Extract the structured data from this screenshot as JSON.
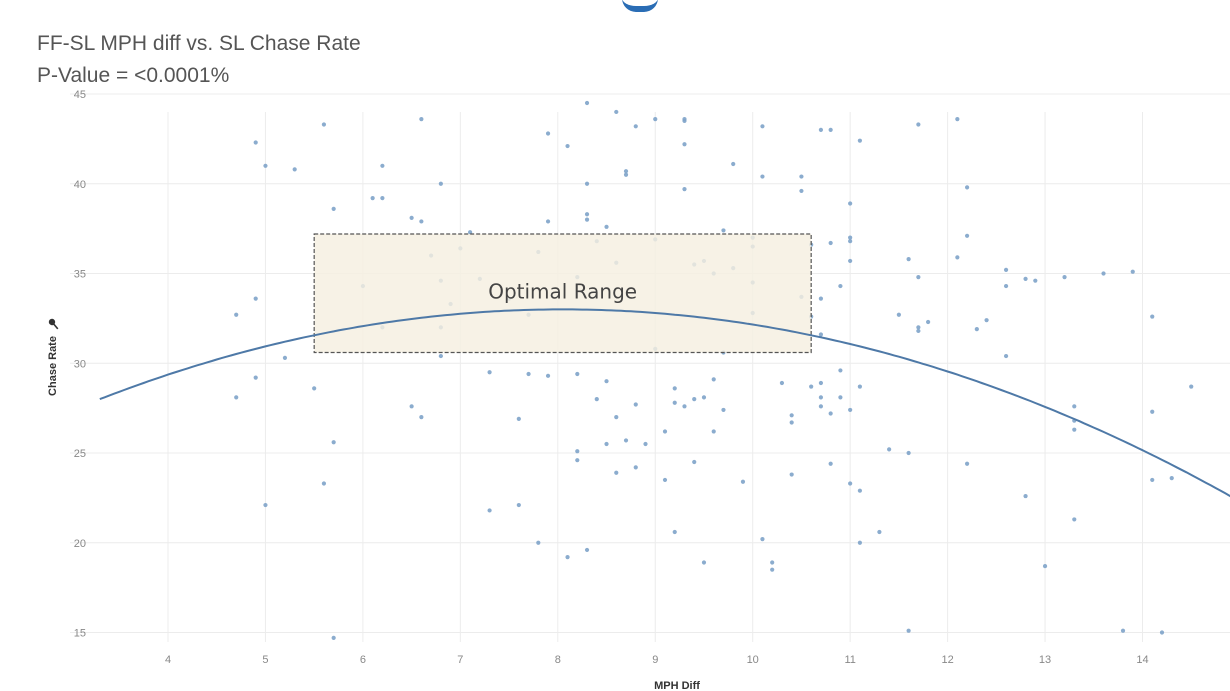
{
  "header": {
    "title": "FF-SL MPH diff vs. SL Chase Rate",
    "subtitle": "P-Value = <0.0001%"
  },
  "colors": {
    "point": "#7ea3c9",
    "trend": "#4e79a7",
    "grid": "#ececec",
    "box_fill": "#f5efe0",
    "box_stroke": "#555555"
  },
  "chart_data": {
    "type": "scatter",
    "title": "FF-SL MPH diff vs. SL Chase Rate",
    "subtitle": "P-Value = <0.0001%",
    "xlabel": "MPH Diff",
    "ylabel": "Chase Rate",
    "ylabel_icon": "pin-icon",
    "xlim": [
      3.3,
      15
    ],
    "ylim": [
      14.5,
      45.5
    ],
    "xticks": [
      "4",
      "5",
      "6",
      "7",
      "8",
      "9",
      "10",
      "11",
      "12",
      "13",
      "14",
      "15"
    ],
    "yticks": [
      "15",
      "20",
      "25",
      "30",
      "35",
      "40",
      "45"
    ],
    "grid": true,
    "trendline": {
      "type": "quadratic",
      "vertex": [
        8.05,
        33.0
      ],
      "x_range": [
        3.3,
        14.95
      ],
      "samples": [
        [
          3.3,
          28.0
        ],
        [
          4.0,
          29.3
        ],
        [
          5.0,
          30.9
        ],
        [
          6.0,
          32.0
        ],
        [
          7.0,
          32.7
        ],
        [
          8.05,
          33.0
        ],
        [
          9.0,
          32.8
        ],
        [
          10.0,
          32.3
        ],
        [
          11.0,
          31.0
        ],
        [
          12.0,
          29.1
        ],
        [
          13.0,
          26.7
        ],
        [
          14.0,
          23.8
        ],
        [
          14.95,
          20.6
        ]
      ]
    },
    "annotation": {
      "text": "Optimal Range",
      "x_range": [
        5.5,
        10.6
      ],
      "y_range": [
        30.6,
        37.2
      ]
    },
    "points": [
      [
        4.7,
        32.7
      ],
      [
        4.7,
        28.1
      ],
      [
        4.9,
        42.3
      ],
      [
        4.9,
        33.6
      ],
      [
        4.9,
        29.2
      ],
      [
        5.0,
        41.0
      ],
      [
        5.0,
        22.1
      ],
      [
        5.2,
        30.3
      ],
      [
        5.3,
        40.8
      ],
      [
        5.5,
        28.6
      ],
      [
        5.6,
        43.3
      ],
      [
        5.6,
        23.3
      ],
      [
        5.7,
        38.6
      ],
      [
        5.7,
        25.6
      ],
      [
        5.7,
        14.7
      ],
      [
        6.0,
        34.3
      ],
      [
        6.1,
        39.2
      ],
      [
        6.2,
        41.0
      ],
      [
        6.2,
        39.2
      ],
      [
        6.2,
        32.0
      ],
      [
        6.5,
        38.1
      ],
      [
        6.5,
        27.6
      ],
      [
        6.6,
        43.6
      ],
      [
        6.6,
        37.9
      ],
      [
        6.6,
        27.0
      ],
      [
        6.7,
        36.0
      ],
      [
        6.8,
        40.0
      ],
      [
        6.8,
        34.6
      ],
      [
        6.8,
        32.0
      ],
      [
        6.8,
        30.4
      ],
      [
        6.9,
        33.3
      ],
      [
        7.0,
        36.4
      ],
      [
        7.1,
        37.3
      ],
      [
        7.2,
        34.7
      ],
      [
        7.3,
        29.5
      ],
      [
        7.3,
        21.8
      ],
      [
        7.5,
        33.6
      ],
      [
        7.6,
        26.9
      ],
      [
        7.6,
        22.1
      ],
      [
        7.7,
        32.7
      ],
      [
        7.7,
        29.4
      ],
      [
        7.8,
        36.2
      ],
      [
        7.8,
        20.0
      ],
      [
        7.9,
        42.8
      ],
      [
        7.9,
        37.9
      ],
      [
        7.9,
        29.3
      ],
      [
        8.1,
        42.1
      ],
      [
        8.1,
        19.2
      ],
      [
        8.2,
        34.8
      ],
      [
        8.2,
        29.4
      ],
      [
        8.2,
        25.1
      ],
      [
        8.2,
        24.6
      ],
      [
        8.3,
        44.5
      ],
      [
        8.3,
        40.0
      ],
      [
        8.3,
        38.3
      ],
      [
        8.3,
        38.0
      ],
      [
        8.3,
        19.6
      ],
      [
        8.4,
        36.8
      ],
      [
        8.4,
        28.0
      ],
      [
        8.5,
        37.6
      ],
      [
        8.5,
        29.0
      ],
      [
        8.5,
        25.5
      ],
      [
        8.6,
        44.0
      ],
      [
        8.6,
        35.6
      ],
      [
        8.6,
        27.0
      ],
      [
        8.6,
        23.9
      ],
      [
        8.7,
        40.7
      ],
      [
        8.7,
        40.5
      ],
      [
        8.7,
        25.7
      ],
      [
        8.8,
        43.2
      ],
      [
        8.8,
        27.7
      ],
      [
        8.8,
        24.2
      ],
      [
        8.9,
        25.5
      ],
      [
        9.0,
        43.6
      ],
      [
        9.0,
        36.9
      ],
      [
        9.0,
        30.8
      ],
      [
        9.1,
        26.2
      ],
      [
        9.1,
        23.5
      ],
      [
        9.2,
        28.6
      ],
      [
        9.2,
        27.8
      ],
      [
        9.2,
        20.6
      ],
      [
        9.3,
        43.6
      ],
      [
        9.3,
        43.5
      ],
      [
        9.3,
        42.2
      ],
      [
        9.3,
        39.7
      ],
      [
        9.3,
        27.6
      ],
      [
        9.4,
        35.5
      ],
      [
        9.4,
        28.0
      ],
      [
        9.4,
        24.5
      ],
      [
        9.5,
        35.7
      ],
      [
        9.5,
        28.1
      ],
      [
        9.5,
        18.9
      ],
      [
        9.6,
        35.0
      ],
      [
        9.6,
        29.1
      ],
      [
        9.6,
        26.2
      ],
      [
        9.7,
        37.4
      ],
      [
        9.7,
        27.4
      ],
      [
        9.7,
        30.6
      ],
      [
        9.8,
        41.1
      ],
      [
        9.8,
        35.3
      ],
      [
        9.9,
        23.4
      ],
      [
        10.0,
        37.0
      ],
      [
        10.0,
        36.5
      ],
      [
        10.0,
        34.5
      ],
      [
        10.0,
        32.8
      ],
      [
        10.1,
        43.2
      ],
      [
        10.1,
        40.4
      ],
      [
        10.1,
        20.2
      ],
      [
        10.2,
        18.9
      ],
      [
        10.2,
        18.5
      ],
      [
        10.3,
        28.9
      ],
      [
        10.4,
        27.1
      ],
      [
        10.4,
        26.7
      ],
      [
        10.4,
        23.8
      ],
      [
        10.5,
        40.4
      ],
      [
        10.5,
        39.6
      ],
      [
        10.5,
        33.7
      ],
      [
        10.6,
        36.6
      ],
      [
        10.6,
        32.6
      ],
      [
        10.6,
        28.7
      ],
      [
        10.7,
        43.0
      ],
      [
        10.7,
        33.6
      ],
      [
        10.7,
        31.6
      ],
      [
        10.7,
        28.9
      ],
      [
        10.7,
        28.1
      ],
      [
        10.7,
        27.6
      ],
      [
        10.8,
        43.0
      ],
      [
        10.8,
        36.7
      ],
      [
        10.8,
        27.2
      ],
      [
        10.8,
        24.4
      ],
      [
        10.9,
        34.3
      ],
      [
        10.9,
        29.6
      ],
      [
        10.9,
        28.1
      ],
      [
        11.0,
        38.9
      ],
      [
        11.0,
        37.0
      ],
      [
        11.0,
        36.8
      ],
      [
        11.0,
        35.7
      ],
      [
        11.0,
        27.4
      ],
      [
        11.0,
        23.3
      ],
      [
        11.1,
        42.4
      ],
      [
        11.1,
        28.7
      ],
      [
        11.1,
        22.9
      ],
      [
        11.1,
        20.0
      ],
      [
        11.3,
        20.6
      ],
      [
        11.4,
        25.2
      ],
      [
        11.5,
        32.7
      ],
      [
        11.6,
        35.8
      ],
      [
        11.6,
        25.0
      ],
      [
        11.6,
        15.1
      ],
      [
        11.7,
        43.3
      ],
      [
        11.7,
        34.8
      ],
      [
        11.7,
        32.0
      ],
      [
        11.7,
        31.8
      ],
      [
        11.8,
        32.3
      ],
      [
        12.1,
        43.6
      ],
      [
        12.1,
        35.9
      ],
      [
        12.2,
        39.8
      ],
      [
        12.2,
        37.1
      ],
      [
        12.2,
        24.4
      ],
      [
        12.3,
        31.9
      ],
      [
        12.4,
        32.4
      ],
      [
        12.6,
        35.2
      ],
      [
        12.6,
        34.3
      ],
      [
        12.6,
        30.4
      ],
      [
        12.8,
        34.7
      ],
      [
        12.8,
        22.6
      ],
      [
        12.9,
        34.6
      ],
      [
        13.0,
        18.7
      ],
      [
        13.2,
        34.8
      ],
      [
        13.3,
        27.6
      ],
      [
        13.3,
        26.8
      ],
      [
        13.3,
        26.3
      ],
      [
        13.3,
        21.3
      ],
      [
        13.6,
        35.0
      ],
      [
        13.8,
        15.1
      ],
      [
        13.9,
        35.1
      ],
      [
        14.1,
        32.6
      ],
      [
        14.1,
        27.3
      ],
      [
        14.1,
        23.5
      ],
      [
        14.2,
        15.0
      ],
      [
        14.3,
        23.6
      ],
      [
        14.5,
        28.7
      ]
    ]
  }
}
